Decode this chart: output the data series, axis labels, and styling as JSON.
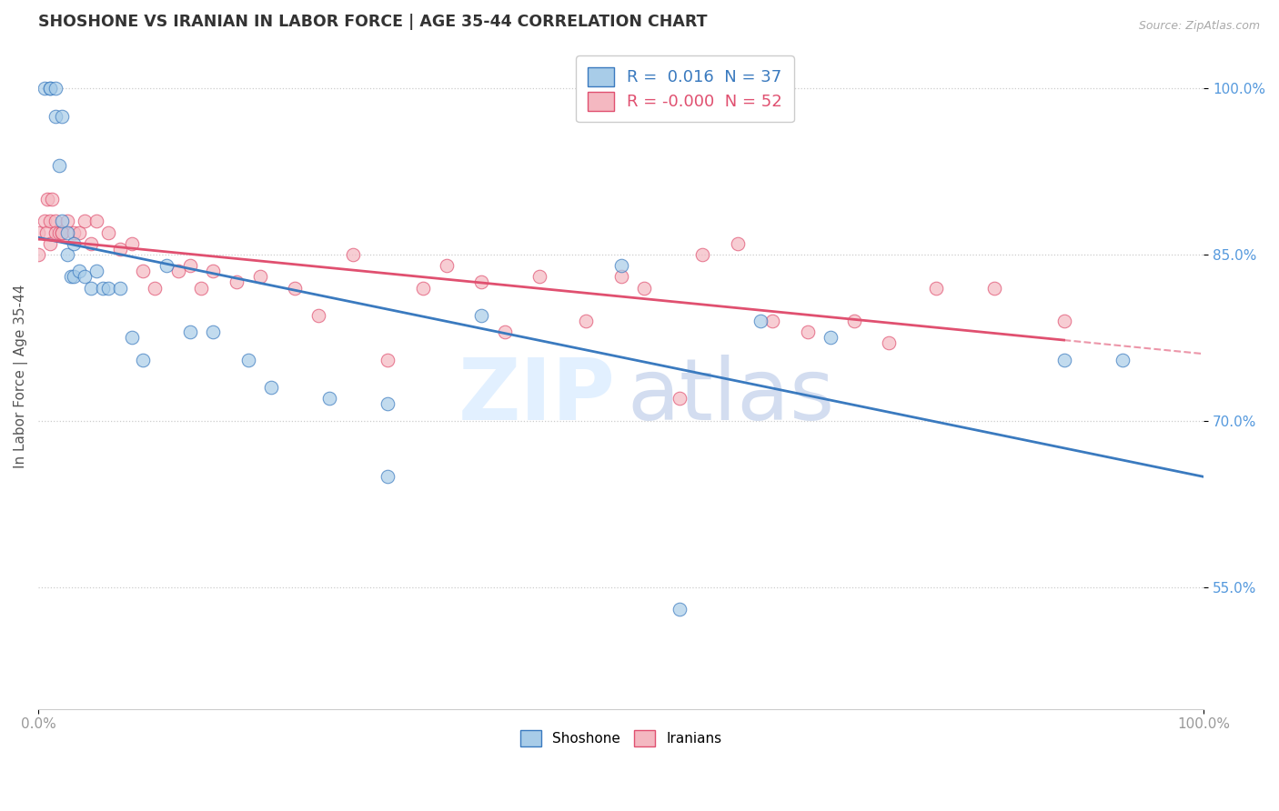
{
  "title": "SHOSHONE VS IRANIAN IN LABOR FORCE | AGE 35-44 CORRELATION CHART",
  "source": "Source: ZipAtlas.com",
  "ylabel": "In Labor Force | Age 35-44",
  "xlim": [
    0.0,
    1.0
  ],
  "ylim": [
    0.44,
    1.04
  ],
  "yticks": [
    0.55,
    0.7,
    0.85,
    1.0
  ],
  "ytick_labels": [
    "55.0%",
    "70.0%",
    "85.0%",
    "100.0%"
  ],
  "xtick_labels": [
    "0.0%",
    "100.0%"
  ],
  "xticks": [
    0.0,
    1.0
  ],
  "legend_R_blue": " 0.016",
  "legend_N_blue": "37",
  "legend_R_pink": "-0.000",
  "legend_N_pink": "52",
  "blue_color": "#a8cce8",
  "pink_color": "#f4b8c1",
  "blue_line_color": "#3a7abf",
  "pink_line_color": "#e05070",
  "shoshone_x": [
    0.005,
    0.01,
    0.01,
    0.015,
    0.015,
    0.018,
    0.02,
    0.02,
    0.025,
    0.025,
    0.028,
    0.03,
    0.03,
    0.035,
    0.04,
    0.045,
    0.05,
    0.055,
    0.06,
    0.07,
    0.08,
    0.09,
    0.11,
    0.13,
    0.15,
    0.18,
    0.2,
    0.25,
    0.3,
    0.38,
    0.5,
    0.62,
    0.68,
    0.88,
    0.93,
    0.3,
    0.55
  ],
  "shoshone_y": [
    1.0,
    1.0,
    1.0,
    1.0,
    0.975,
    0.93,
    0.975,
    0.88,
    0.87,
    0.85,
    0.83,
    0.86,
    0.83,
    0.835,
    0.83,
    0.82,
    0.835,
    0.82,
    0.82,
    0.82,
    0.775,
    0.755,
    0.84,
    0.78,
    0.78,
    0.755,
    0.73,
    0.72,
    0.715,
    0.795,
    0.84,
    0.79,
    0.775,
    0.755,
    0.755,
    0.65,
    0.53
  ],
  "iranian_x": [
    0.0,
    0.0,
    0.005,
    0.007,
    0.008,
    0.01,
    0.01,
    0.012,
    0.015,
    0.015,
    0.018,
    0.02,
    0.02,
    0.025,
    0.03,
    0.035,
    0.04,
    0.045,
    0.05,
    0.06,
    0.07,
    0.08,
    0.09,
    0.1,
    0.12,
    0.13,
    0.14,
    0.15,
    0.17,
    0.19,
    0.22,
    0.24,
    0.27,
    0.3,
    0.33,
    0.35,
    0.38,
    0.4,
    0.43,
    0.47,
    0.5,
    0.52,
    0.55,
    0.57,
    0.6,
    0.63,
    0.66,
    0.7,
    0.73,
    0.77,
    0.82,
    0.88
  ],
  "iranian_y": [
    0.87,
    0.85,
    0.88,
    0.87,
    0.9,
    0.88,
    0.86,
    0.9,
    0.88,
    0.87,
    0.87,
    0.87,
    0.87,
    0.88,
    0.87,
    0.87,
    0.88,
    0.86,
    0.88,
    0.87,
    0.855,
    0.86,
    0.835,
    0.82,
    0.835,
    0.84,
    0.82,
    0.835,
    0.825,
    0.83,
    0.82,
    0.795,
    0.85,
    0.755,
    0.82,
    0.84,
    0.825,
    0.78,
    0.83,
    0.79,
    0.83,
    0.82,
    0.72,
    0.85,
    0.86,
    0.79,
    0.78,
    0.79,
    0.77,
    0.82,
    0.82,
    0.79
  ],
  "grid_color": "#cccccc",
  "tick_color_y": "#5599dd",
  "tick_color_x": "#999999",
  "title_color": "#333333",
  "ylabel_color": "#555555",
  "source_color": "#aaaaaa"
}
